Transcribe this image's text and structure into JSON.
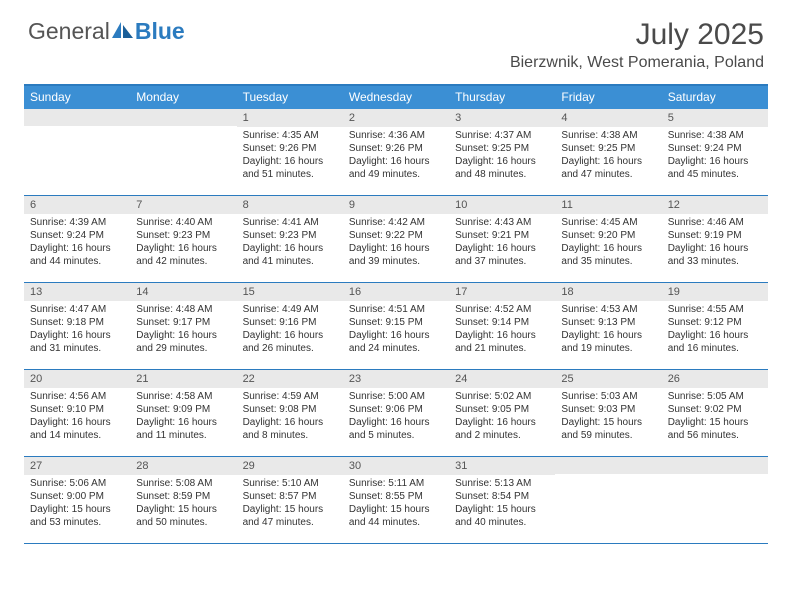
{
  "brand": {
    "part1": "General",
    "part2": "Blue"
  },
  "title": "July 2025",
  "location": "Bierzwnik, West Pomerania, Poland",
  "colors": {
    "header_bg": "#3b8fd4",
    "border": "#2b7bbf",
    "daynum_bg": "#e9e9e9",
    "text": "#333333"
  },
  "dayNames": [
    "Sunday",
    "Monday",
    "Tuesday",
    "Wednesday",
    "Thursday",
    "Friday",
    "Saturday"
  ],
  "weeks": [
    [
      {
        "n": "",
        "sr": "",
        "ss": "",
        "dl1": "",
        "dl2": ""
      },
      {
        "n": "",
        "sr": "",
        "ss": "",
        "dl1": "",
        "dl2": ""
      },
      {
        "n": "1",
        "sr": "Sunrise: 4:35 AM",
        "ss": "Sunset: 9:26 PM",
        "dl1": "Daylight: 16 hours",
        "dl2": "and 51 minutes."
      },
      {
        "n": "2",
        "sr": "Sunrise: 4:36 AM",
        "ss": "Sunset: 9:26 PM",
        "dl1": "Daylight: 16 hours",
        "dl2": "and 49 minutes."
      },
      {
        "n": "3",
        "sr": "Sunrise: 4:37 AM",
        "ss": "Sunset: 9:25 PM",
        "dl1": "Daylight: 16 hours",
        "dl2": "and 48 minutes."
      },
      {
        "n": "4",
        "sr": "Sunrise: 4:38 AM",
        "ss": "Sunset: 9:25 PM",
        "dl1": "Daylight: 16 hours",
        "dl2": "and 47 minutes."
      },
      {
        "n": "5",
        "sr": "Sunrise: 4:38 AM",
        "ss": "Sunset: 9:24 PM",
        "dl1": "Daylight: 16 hours",
        "dl2": "and 45 minutes."
      }
    ],
    [
      {
        "n": "6",
        "sr": "Sunrise: 4:39 AM",
        "ss": "Sunset: 9:24 PM",
        "dl1": "Daylight: 16 hours",
        "dl2": "and 44 minutes."
      },
      {
        "n": "7",
        "sr": "Sunrise: 4:40 AM",
        "ss": "Sunset: 9:23 PM",
        "dl1": "Daylight: 16 hours",
        "dl2": "and 42 minutes."
      },
      {
        "n": "8",
        "sr": "Sunrise: 4:41 AM",
        "ss": "Sunset: 9:23 PM",
        "dl1": "Daylight: 16 hours",
        "dl2": "and 41 minutes."
      },
      {
        "n": "9",
        "sr": "Sunrise: 4:42 AM",
        "ss": "Sunset: 9:22 PM",
        "dl1": "Daylight: 16 hours",
        "dl2": "and 39 minutes."
      },
      {
        "n": "10",
        "sr": "Sunrise: 4:43 AM",
        "ss": "Sunset: 9:21 PM",
        "dl1": "Daylight: 16 hours",
        "dl2": "and 37 minutes."
      },
      {
        "n": "11",
        "sr": "Sunrise: 4:45 AM",
        "ss": "Sunset: 9:20 PM",
        "dl1": "Daylight: 16 hours",
        "dl2": "and 35 minutes."
      },
      {
        "n": "12",
        "sr": "Sunrise: 4:46 AM",
        "ss": "Sunset: 9:19 PM",
        "dl1": "Daylight: 16 hours",
        "dl2": "and 33 minutes."
      }
    ],
    [
      {
        "n": "13",
        "sr": "Sunrise: 4:47 AM",
        "ss": "Sunset: 9:18 PM",
        "dl1": "Daylight: 16 hours",
        "dl2": "and 31 minutes."
      },
      {
        "n": "14",
        "sr": "Sunrise: 4:48 AM",
        "ss": "Sunset: 9:17 PM",
        "dl1": "Daylight: 16 hours",
        "dl2": "and 29 minutes."
      },
      {
        "n": "15",
        "sr": "Sunrise: 4:49 AM",
        "ss": "Sunset: 9:16 PM",
        "dl1": "Daylight: 16 hours",
        "dl2": "and 26 minutes."
      },
      {
        "n": "16",
        "sr": "Sunrise: 4:51 AM",
        "ss": "Sunset: 9:15 PM",
        "dl1": "Daylight: 16 hours",
        "dl2": "and 24 minutes."
      },
      {
        "n": "17",
        "sr": "Sunrise: 4:52 AM",
        "ss": "Sunset: 9:14 PM",
        "dl1": "Daylight: 16 hours",
        "dl2": "and 21 minutes."
      },
      {
        "n": "18",
        "sr": "Sunrise: 4:53 AM",
        "ss": "Sunset: 9:13 PM",
        "dl1": "Daylight: 16 hours",
        "dl2": "and 19 minutes."
      },
      {
        "n": "19",
        "sr": "Sunrise: 4:55 AM",
        "ss": "Sunset: 9:12 PM",
        "dl1": "Daylight: 16 hours",
        "dl2": "and 16 minutes."
      }
    ],
    [
      {
        "n": "20",
        "sr": "Sunrise: 4:56 AM",
        "ss": "Sunset: 9:10 PM",
        "dl1": "Daylight: 16 hours",
        "dl2": "and 14 minutes."
      },
      {
        "n": "21",
        "sr": "Sunrise: 4:58 AM",
        "ss": "Sunset: 9:09 PM",
        "dl1": "Daylight: 16 hours",
        "dl2": "and 11 minutes."
      },
      {
        "n": "22",
        "sr": "Sunrise: 4:59 AM",
        "ss": "Sunset: 9:08 PM",
        "dl1": "Daylight: 16 hours",
        "dl2": "and 8 minutes."
      },
      {
        "n": "23",
        "sr": "Sunrise: 5:00 AM",
        "ss": "Sunset: 9:06 PM",
        "dl1": "Daylight: 16 hours",
        "dl2": "and 5 minutes."
      },
      {
        "n": "24",
        "sr": "Sunrise: 5:02 AM",
        "ss": "Sunset: 9:05 PM",
        "dl1": "Daylight: 16 hours",
        "dl2": "and 2 minutes."
      },
      {
        "n": "25",
        "sr": "Sunrise: 5:03 AM",
        "ss": "Sunset: 9:03 PM",
        "dl1": "Daylight: 15 hours",
        "dl2": "and 59 minutes."
      },
      {
        "n": "26",
        "sr": "Sunrise: 5:05 AM",
        "ss": "Sunset: 9:02 PM",
        "dl1": "Daylight: 15 hours",
        "dl2": "and 56 minutes."
      }
    ],
    [
      {
        "n": "27",
        "sr": "Sunrise: 5:06 AM",
        "ss": "Sunset: 9:00 PM",
        "dl1": "Daylight: 15 hours",
        "dl2": "and 53 minutes."
      },
      {
        "n": "28",
        "sr": "Sunrise: 5:08 AM",
        "ss": "Sunset: 8:59 PM",
        "dl1": "Daylight: 15 hours",
        "dl2": "and 50 minutes."
      },
      {
        "n": "29",
        "sr": "Sunrise: 5:10 AM",
        "ss": "Sunset: 8:57 PM",
        "dl1": "Daylight: 15 hours",
        "dl2": "and 47 minutes."
      },
      {
        "n": "30",
        "sr": "Sunrise: 5:11 AM",
        "ss": "Sunset: 8:55 PM",
        "dl1": "Daylight: 15 hours",
        "dl2": "and 44 minutes."
      },
      {
        "n": "31",
        "sr": "Sunrise: 5:13 AM",
        "ss": "Sunset: 8:54 PM",
        "dl1": "Daylight: 15 hours",
        "dl2": "and 40 minutes."
      },
      {
        "n": "",
        "sr": "",
        "ss": "",
        "dl1": "",
        "dl2": ""
      },
      {
        "n": "",
        "sr": "",
        "ss": "",
        "dl1": "",
        "dl2": ""
      }
    ]
  ]
}
